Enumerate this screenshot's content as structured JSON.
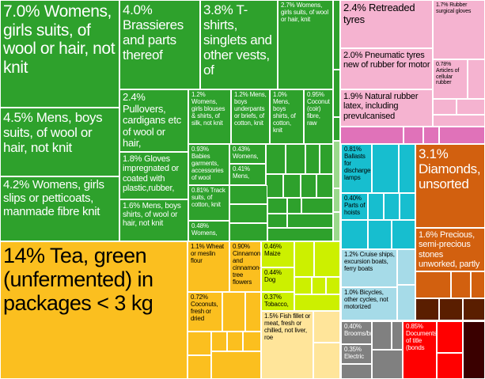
{
  "chart_data": {
    "type": "treemap",
    "unit": "%",
    "items": [
      {
        "label": "7.0% Womens, girls suits, of wool or hair, not knit",
        "value": 7.0,
        "color": "#2ea12c"
      },
      {
        "label": "4.5% Mens, boys suits, of wool or hair, not knit",
        "value": 4.5,
        "color": "#2ea12c"
      },
      {
        "label": "4.2% Womens, girls slips or petticoats, manmade fibre knit",
        "value": 4.2,
        "color": "#2ea12c"
      },
      {
        "label": "4.0% Brassieres and parts thereof",
        "value": 4.0,
        "color": "#2ea12c"
      },
      {
        "label": "3.8% T-shirts, singlets and other vests, of",
        "value": 3.8,
        "color": "#2ea12c"
      },
      {
        "label": "2.7% Womens, girls suits, of wool or hair, knit",
        "value": 2.7,
        "color": "#2ea12c"
      },
      {
        "label": "2.4% Pullovers, cardigans etc of wool or hair,",
        "value": 2.4,
        "color": "#2ea12c"
      },
      {
        "label": "1.8% Gloves impregnated or coated with plastic,rubber,",
        "value": 1.8,
        "color": "#2ea12c"
      },
      {
        "label": "1.6% Mens, boys shirts, of wool or hair, not knit",
        "value": 1.6,
        "color": "#2ea12c"
      },
      {
        "label": "1.2% Womens, girls blouses & shirts, of silk, not knit",
        "value": 1.2,
        "color": "#2ea12c"
      },
      {
        "label": "1.2% Mens, boys underpants or briefs, of cotton, knit",
        "value": 1.2,
        "color": "#2ea12c"
      },
      {
        "label": "1.0% Mens, boys shirts, of cotton, knit",
        "value": 1.0,
        "color": "#2ea12c"
      },
      {
        "label": "0.95% Coconut (coir) fibre, raw",
        "value": 0.95,
        "color": "#2ea12c"
      },
      {
        "label": "0.93% Babies garments, accessories of wool",
        "value": 0.93,
        "color": "#2ea12c"
      },
      {
        "label": "0.43% Womens,",
        "value": 0.43,
        "color": "#2ea12c"
      },
      {
        "label": "0.41% Mens,",
        "value": 0.41,
        "color": "#2ea12c"
      },
      {
        "label": "0.81% Track suits, of cotton, knit",
        "value": 0.81,
        "color": "#2ea12c"
      },
      {
        "label": "0.48% Womens,",
        "value": 0.48,
        "color": "#2ea12c"
      },
      {
        "label": "14% Tea, green (unfermented) in packages < 3 kg",
        "value": 14,
        "color": "#fbbf1f"
      },
      {
        "label": "1.1% Wheat or meslin flour",
        "value": 1.1,
        "color": "#fbbf1f"
      },
      {
        "label": "0.90% Cinnamon and cinnamon-tree flowers",
        "value": 0.9,
        "color": "#fbbf1f"
      },
      {
        "label": "0.72% Coconuts, fresh or dried",
        "value": 0.72,
        "color": "#fbbf1f"
      },
      {
        "label": "0.46% Maize",
        "value": 0.46,
        "color": "#ccf000"
      },
      {
        "label": "0.44% Dog",
        "value": 0.44,
        "color": "#ccf000"
      },
      {
        "label": "0.37% Tobacco,",
        "value": 0.37,
        "color": "#ccf000"
      },
      {
        "label": "1.5% Fish fillet or meat, fresh or chilled, not liver, roe",
        "value": 1.5,
        "color": "#ffe59a"
      },
      {
        "label": "2.4% Retreaded tyres",
        "value": 2.4,
        "color": "#f5b3d0"
      },
      {
        "label": "2.0% Pneumatic tyres new of rubber for motor",
        "value": 2.0,
        "color": "#f5b3d0"
      },
      {
        "label": "1.9% Natural rubber latex, including prevulcanised",
        "value": 1.9,
        "color": "#f5b3d0"
      },
      {
        "label": "1.7% Rubber surgical gloves",
        "value": 1.7,
        "color": "#f5b3d0"
      },
      {
        "label": "0.78% Articles of cellular rubber",
        "value": 0.78,
        "color": "#f5b3d0"
      },
      {
        "label": "0.81% Ballasts for discharge lamps",
        "value": 0.81,
        "color": "#17becf"
      },
      {
        "label": "0.40% Parts of hoists",
        "value": 0.4,
        "color": "#17becf"
      },
      {
        "label": "1.2% Cruise ships, excursion boats, ferry boats",
        "value": 1.2,
        "color": "#a6dbe8"
      },
      {
        "label": "1.0% Bicycles, other cycles, not motorized",
        "value": 1.0,
        "color": "#a6dbe8"
      },
      {
        "label": "3.1% Diamonds, unsorted",
        "value": 3.1,
        "color": "#d2600f"
      },
      {
        "label": "1.6% Precious, semi-precious stones unworked, partly",
        "value": 1.6,
        "color": "#d2600f"
      },
      {
        "label": "0.40% Brooms/brushes",
        "value": 0.4,
        "color": "#808080"
      },
      {
        "label": "0.35% Electric",
        "value": 0.35,
        "color": "#808080"
      },
      {
        "label": "0.85% Documents of title (bonds",
        "value": 0.85,
        "color": "#ff0000"
      }
    ]
  }
}
